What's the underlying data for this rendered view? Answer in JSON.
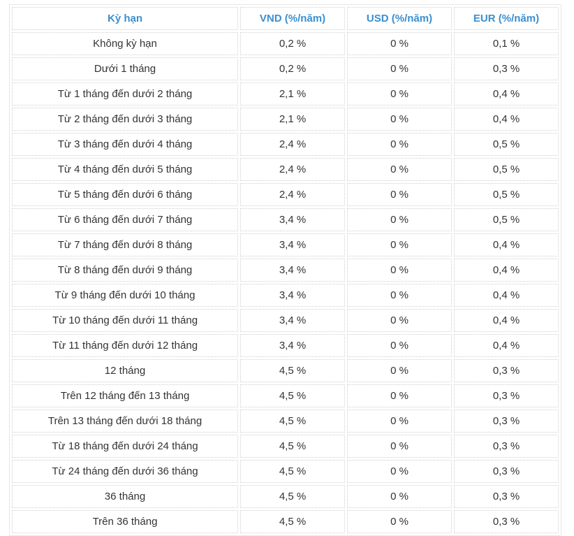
{
  "table": {
    "headers": [
      "Kỳ hạn",
      "VND (%/năm)",
      "USD (%/năm)",
      "EUR (%/năm)"
    ],
    "rows": [
      [
        "Không kỳ hạn",
        "0,2 %",
        "0 %",
        "0,1 %"
      ],
      [
        "Dưới 1 tháng",
        "0,2 %",
        "0 %",
        "0,3 %"
      ],
      [
        "Từ 1 tháng đến dưới 2 tháng",
        "2,1 %",
        "0 %",
        "0,4 %"
      ],
      [
        "Từ 2 tháng đến dưới 3 tháng",
        "2,1 %",
        "0 %",
        "0,4 %"
      ],
      [
        "Từ 3 tháng đến dưới 4 tháng",
        "2,4 %",
        "0 %",
        "0,5 %"
      ],
      [
        "Từ 4 tháng đến dưới 5 tháng",
        "2,4 %",
        "0 %",
        "0,5 %"
      ],
      [
        "Từ 5 tháng đến dưới 6 tháng",
        "2,4 %",
        "0 %",
        "0,5 %"
      ],
      [
        "Từ 6 tháng đến dưới 7 tháng",
        "3,4 %",
        "0 %",
        "0,5 %"
      ],
      [
        "Từ 7 tháng đến dưới 8 tháng",
        "3,4 %",
        "0 %",
        "0,4 %"
      ],
      [
        "Từ 8 tháng đến dưới 9 tháng",
        "3,4 %",
        "0 %",
        "0,4 %"
      ],
      [
        "Từ 9 tháng đến dưới 10 tháng",
        "3,4 %",
        "0 %",
        "0,4 %"
      ],
      [
        "Từ 10 tháng đến dưới 11 tháng",
        "3,4 %",
        "0 %",
        "0,4 %"
      ],
      [
        "Từ 11 tháng đến dưới 12 tháng",
        "3,4 %",
        "0 %",
        "0,4 %"
      ],
      [
        "12 tháng",
        "4,5 %",
        "0 %",
        "0,3 %"
      ],
      [
        "Trên 12 tháng đến 13 tháng",
        "4,5 %",
        "0 %",
        "0,3 %"
      ],
      [
        "Trên 13 tháng đến dưới 18 tháng",
        "4,5 %",
        "0 %",
        "0,3 %"
      ],
      [
        "Từ 18 tháng đến dưới 24 tháng",
        "4,5 %",
        "0 %",
        "0,3 %"
      ],
      [
        "Từ 24 tháng đến dưới 36 tháng",
        "4,5 %",
        "0 %",
        "0,3 %"
      ],
      [
        "36 tháng",
        "4,5 %",
        "0 %",
        "0,3 %"
      ],
      [
        "Trên 36 tháng",
        "4,5 %",
        "0 %",
        "0,3 %"
      ]
    ]
  },
  "colors": {
    "header_text": "#3a8fd0",
    "body_text": "#333333",
    "border": "#cfcfcf"
  }
}
